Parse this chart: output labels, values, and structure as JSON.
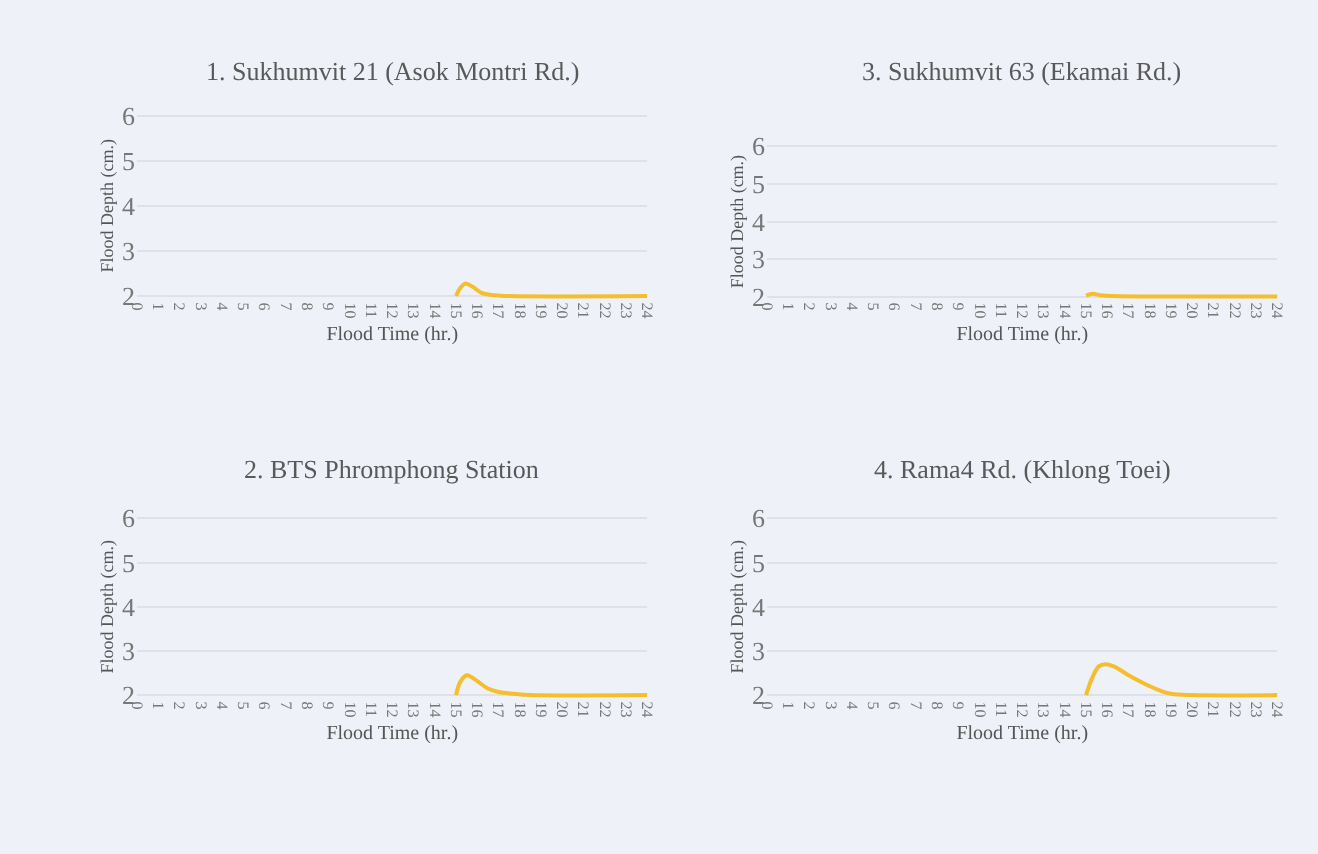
{
  "chart_data": [
    {
      "type": "line",
      "title": "1. Sukhumvit 21 (Asok Montri Rd.)",
      "xlabel": "Flood Time (hr.)",
      "ylabel": "Flood Depth (cm.)",
      "x": [
        15,
        15.2,
        15.45,
        15.8,
        16.2,
        16.8,
        17.5,
        24
      ],
      "values": [
        2.0,
        2.18,
        2.28,
        2.2,
        2.07,
        2.02,
        2.0,
        2.0
      ],
      "color": "#f5be2e",
      "xlim": [
        0,
        24
      ],
      "xticks": [
        0,
        1,
        2,
        3,
        4,
        5,
        6,
        7,
        8,
        9,
        10,
        11,
        12,
        13,
        14,
        15,
        16,
        17,
        18,
        19,
        20,
        21,
        22,
        23,
        24
      ],
      "ylim": [
        1.9,
        6.1
      ],
      "yticks": [
        2,
        3,
        4,
        5,
        6
      ],
      "grid": "y"
    },
    {
      "type": "line",
      "title": "3. Sukhumvit 63 (Ekamai Rd.)",
      "xlabel": "Flood Time (hr.)",
      "ylabel": "Flood Depth (cm.)",
      "x": [
        15,
        15.3,
        15.7,
        16.2,
        24
      ],
      "values": [
        2.03,
        2.08,
        2.04,
        2.02,
        2.01
      ],
      "color": "#f5be2e",
      "xlim": [
        0,
        24
      ],
      "xticks": [
        0,
        1,
        2,
        3,
        4,
        5,
        6,
        7,
        8,
        9,
        10,
        11,
        12,
        13,
        14,
        15,
        16,
        17,
        18,
        19,
        20,
        21,
        22,
        23,
        24
      ],
      "ylim": [
        1.9,
        6.1
      ],
      "yticks": [
        2,
        3,
        4,
        5,
        6
      ],
      "grid": "y"
    },
    {
      "type": "line",
      "title": "2. BTS Phromphong Station",
      "xlabel": "Flood Time (hr.)",
      "ylabel": "Flood Depth (cm.)",
      "x": [
        15,
        15.2,
        15.5,
        15.9,
        16.5,
        17,
        17.7,
        18.5,
        24
      ],
      "values": [
        2.0,
        2.3,
        2.45,
        2.35,
        2.15,
        2.07,
        2.03,
        2.0,
        2.0
      ],
      "color": "#f5be2e",
      "xlim": [
        0,
        24
      ],
      "xticks": [
        0,
        1,
        2,
        3,
        4,
        5,
        6,
        7,
        8,
        9,
        10,
        11,
        12,
        13,
        14,
        15,
        16,
        17,
        18,
        19,
        20,
        21,
        22,
        23,
        24
      ],
      "ylim": [
        1.9,
        6.1
      ],
      "yticks": [
        2,
        3,
        4,
        5,
        6
      ],
      "grid": "y"
    },
    {
      "type": "line",
      "title": "4. Rama4 Rd. (Khlong Toei)",
      "xlabel": "Flood Time (hr.)",
      "ylabel": "Flood Depth (cm.)",
      "x": [
        15,
        15.3,
        15.6,
        15.9,
        16.3,
        17,
        17.5,
        18,
        18.5,
        19,
        20,
        24
      ],
      "values": [
        2.0,
        2.4,
        2.65,
        2.7,
        2.65,
        2.45,
        2.32,
        2.2,
        2.1,
        2.03,
        2.0,
        2.0
      ],
      "color": "#f5be2e",
      "xlim": [
        0,
        24
      ],
      "xticks": [
        0,
        1,
        2,
        3,
        4,
        5,
        6,
        7,
        8,
        9,
        10,
        11,
        12,
        13,
        14,
        15,
        16,
        17,
        18,
        19,
        20,
        21,
        22,
        23,
        24
      ],
      "ylim": [
        1.9,
        6.1
      ],
      "yticks": [
        2,
        3,
        4,
        5,
        6
      ],
      "grid": "y"
    }
  ]
}
